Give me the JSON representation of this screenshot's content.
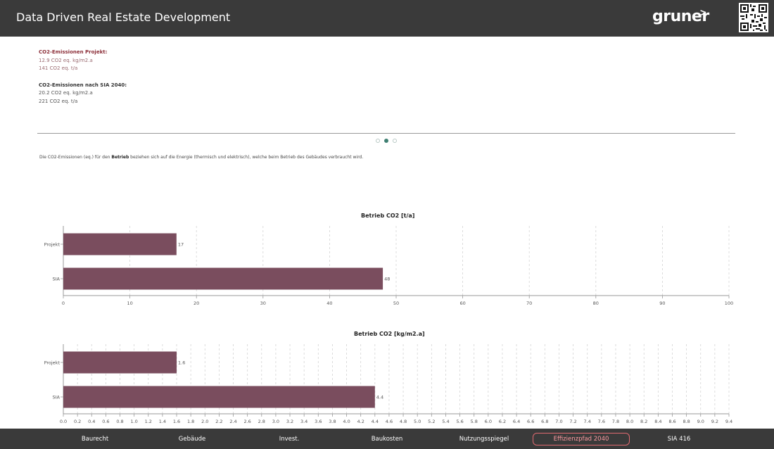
{
  "header": {
    "title": "Data Driven Real Estate Development",
    "brand": "gruner",
    "brand_arrow": ">"
  },
  "info": {
    "project_heading": "CO2-Emissionen Projekt:",
    "project_line1": "12.9 CO2 eq. kg/m2.a",
    "project_line2": "141 CO2 eq. t/a",
    "sia_heading": "CO2-Emissionen nach SIA 2040:",
    "sia_line1": "20.2 CO2 eq. kg/m2.a",
    "sia_line2": "221 CO2 eq. t/a"
  },
  "pager": {
    "count": 3,
    "active": 1
  },
  "note": {
    "before": "Die CO2-Emissionen (eq.) für den ",
    "bold": "Betrieb",
    "after": " beziehen sich auf die Energie (thermisch und elektrisch), welche beim Betrieb des Gebäudes verbraucht wird."
  },
  "colors": {
    "bar": "#7a4d5e",
    "header_bg": "#3a3a3a",
    "accent": "#e06a70",
    "dot_active": "#3f7f72"
  },
  "chart_data": [
    {
      "type": "bar",
      "orientation": "horizontal",
      "title": "Betrieb CO2 [t/a]",
      "categories": [
        "Projekt",
        "SIA"
      ],
      "values": [
        17,
        48
      ],
      "data_labels": [
        "17",
        "48"
      ],
      "xlim": [
        0,
        100
      ],
      "xticks": [
        0,
        10,
        20,
        30,
        40,
        50,
        60,
        70,
        80,
        90,
        100
      ],
      "grid": true
    },
    {
      "type": "bar",
      "orientation": "horizontal",
      "title": "Betrieb CO2 [kg/m2.a]",
      "categories": [
        "Projekt",
        "SIA"
      ],
      "values": [
        1.6,
        4.4
      ],
      "data_labels": [
        "1.6",
        "4.4"
      ],
      "xlim": [
        0,
        9.4
      ],
      "xticks": [
        0.0,
        0.2,
        0.4,
        0.6,
        0.8,
        1.0,
        1.2,
        1.4,
        1.6,
        1.8,
        2.0,
        2.2,
        2.4,
        2.6,
        2.8,
        3.0,
        3.2,
        3.4,
        3.6,
        3.8,
        4.0,
        4.2,
        4.4,
        4.6,
        4.8,
        5.0,
        5.2,
        5.4,
        5.6,
        5.8,
        6.0,
        6.2,
        6.4,
        6.6,
        6.8,
        7.0,
        7.2,
        7.4,
        7.6,
        7.8,
        8.0,
        8.2,
        8.4,
        8.6,
        8.8,
        9.0,
        9.2,
        9.4
      ],
      "tick_decimals": 1,
      "grid": true
    }
  ],
  "nav": {
    "items": [
      "Baurecht",
      "Gebäude",
      "Invest.",
      "Baukosten",
      "Nutzungsspiegel",
      "Effizienzpfad 2040",
      "SIA 416"
    ],
    "active": 5
  }
}
